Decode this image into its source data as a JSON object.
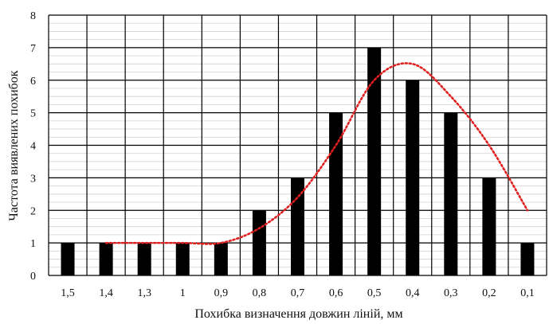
{
  "chart_data": {
    "type": "bar",
    "title": "",
    "xlabel": "Похибка визначення довжин ліній, мм",
    "ylabel": "Частота виявлених похибок",
    "categories": [
      "1,5",
      "1,4",
      "1,3",
      "1",
      "0,9",
      "0,8",
      "0,7",
      "0,6",
      "0,5",
      "0,4",
      "0,3",
      "0,2",
      "0,1"
    ],
    "series": [
      {
        "values": [
          1,
          1,
          1,
          1,
          1,
          2,
          3,
          5,
          7,
          6,
          5,
          3,
          1
        ],
        "color": "#000000"
      }
    ],
    "trend": {
      "style": "dotted",
      "color": "#e02020",
      "values": [
        null,
        1,
        1,
        1,
        1,
        1.45,
        2.4,
        4.0,
        6.0,
        6.5,
        5.5,
        4.0,
        2.0
      ]
    },
    "ylim": [
      0,
      8
    ],
    "yticks": [
      0,
      1,
      2,
      3,
      4,
      5,
      6,
      7,
      8
    ],
    "grid": true,
    "legend": "none"
  }
}
